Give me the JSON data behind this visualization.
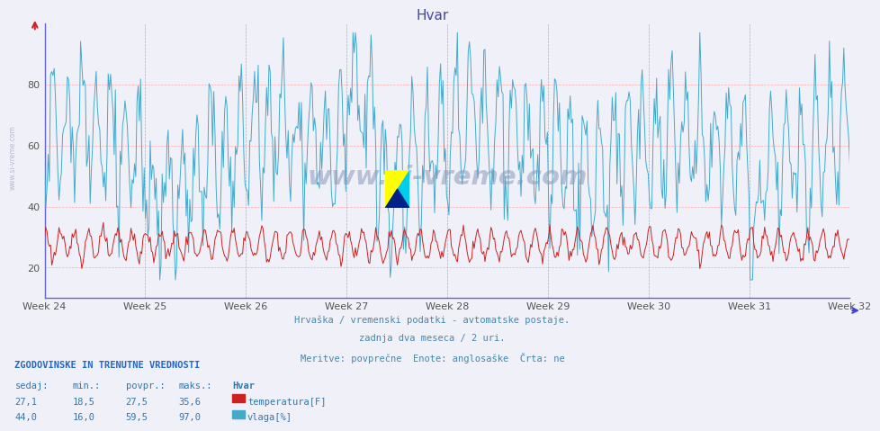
{
  "title": "Hvar",
  "title_color": "#4444aa",
  "bg_color": "#f0f0f8",
  "plot_bg_color": "#f0f0f8",
  "grid_color_h": "#ffaaaa",
  "grid_color_v": "#aaaacc",
  "x_weeks": [
    "Week 24",
    "Week 25",
    "Week 26",
    "Week 27",
    "Week 28",
    "Week 29",
    "Week 30",
    "Week 31",
    "Week 32"
  ],
  "ylim": [
    10,
    100
  ],
  "yticks": [
    20,
    40,
    60,
    80
  ],
  "temp_color": "#cc2222",
  "humidity_color": "#44aacc",
  "watermark_text": "www.si-vreme.com",
  "footer_line1": "Hrvaška / vremenski podatki - avtomatske postaje.",
  "footer_line2": "zadnja dva meseca / 2 uri.",
  "footer_line3": "Meritve: povprečne  Enote: anglosaške  Črta: ne",
  "footer_color": "#4488aa",
  "table_title": "ZGODOVINSKE IN TRENUTNE VREDNOSTI",
  "table_headers": [
    "sedaj:",
    "min.:",
    "povpr.:",
    "maks.:",
    "Hvar"
  ],
  "table_row1": [
    "27,1",
    "18,5",
    "27,5",
    "35,6",
    "temperatura[F]"
  ],
  "table_row2": [
    "44,0",
    "16,0",
    "59,5",
    "97,0",
    "vlaga[%]"
  ],
  "n_points": 672,
  "temp_min": 18.5,
  "temp_max": 35.6,
  "temp_mean": 27.5,
  "humidity_min": 16.0,
  "humidity_max": 97.0,
  "humidity_mean": 59.5,
  "left_label": "www.si-vreme.com"
}
